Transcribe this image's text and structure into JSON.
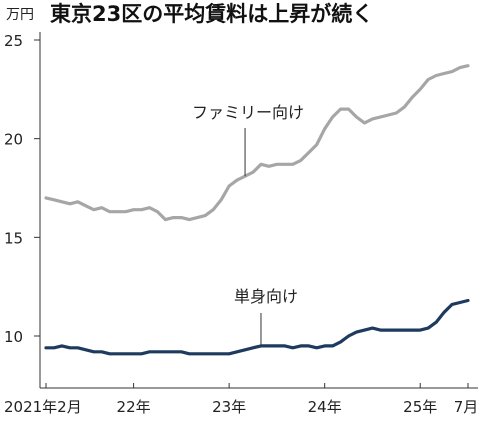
{
  "chart_data": {
    "type": "line",
    "title": "東京23区の平均賃料は上昇が続く",
    "unit": "万円",
    "xlabel": "",
    "ylabel": "",
    "x_start": "2021-02",
    "x_end": "2025-07",
    "ylim": [
      8.0,
      25.0
    ],
    "yticks": [
      "25",
      "20",
      "15",
      "10"
    ],
    "ytick_values": [
      25,
      20,
      15,
      10
    ],
    "xticks": [
      {
        "label": "2021年2月",
        "x": "2021-02"
      },
      {
        "label": "22年",
        "x": "2022-01"
      },
      {
        "label": "23年",
        "x": "2023-01"
      },
      {
        "label": "24年",
        "x": "2024-01"
      },
      {
        "label": "25年",
        "x": "2025-01"
      },
      {
        "label": "7月",
        "x": "2025-07"
      }
    ],
    "grid": false,
    "series": [
      {
        "name": "ファミリー向け",
        "color": "#a6a6a6",
        "x": [
          "2021-02",
          "2021-03",
          "2021-04",
          "2021-05",
          "2021-06",
          "2021-07",
          "2021-08",
          "2021-09",
          "2021-10",
          "2021-11",
          "2021-12",
          "2022-01",
          "2022-02",
          "2022-03",
          "2022-04",
          "2022-05",
          "2022-06",
          "2022-07",
          "2022-08",
          "2022-09",
          "2022-10",
          "2022-11",
          "2022-12",
          "2023-01",
          "2023-02",
          "2023-03",
          "2023-04",
          "2023-05",
          "2023-06",
          "2023-07",
          "2023-08",
          "2023-09",
          "2023-10",
          "2023-11",
          "2023-12",
          "2024-01",
          "2024-02",
          "2024-03",
          "2024-04",
          "2024-05",
          "2024-06",
          "2024-07",
          "2024-08",
          "2024-09",
          "2024-10",
          "2024-11",
          "2024-12",
          "2025-01",
          "2025-02",
          "2025-03",
          "2025-04",
          "2025-05",
          "2025-06",
          "2025-07"
        ],
        "values": [
          17.0,
          16.9,
          16.8,
          16.7,
          16.8,
          16.6,
          16.4,
          16.5,
          16.3,
          16.3,
          16.3,
          16.4,
          16.4,
          16.5,
          16.3,
          15.9,
          16.0,
          16.0,
          15.9,
          16.0,
          16.1,
          16.4,
          16.9,
          17.6,
          17.9,
          18.1,
          18.3,
          18.7,
          18.6,
          18.7,
          18.7,
          18.7,
          18.9,
          19.3,
          19.7,
          20.5,
          21.1,
          21.5,
          21.5,
          21.1,
          20.8,
          21.0,
          21.1,
          21.2,
          21.3,
          21.6,
          22.1,
          22.5,
          23.0,
          23.2,
          23.3,
          23.4,
          23.6,
          23.7
        ]
      },
      {
        "name": "単身向け",
        "color": "#1e3a5f",
        "x": [
          "2021-02",
          "2021-03",
          "2021-04",
          "2021-05",
          "2021-06",
          "2021-07",
          "2021-08",
          "2021-09",
          "2021-10",
          "2021-11",
          "2021-12",
          "2022-01",
          "2022-02",
          "2022-03",
          "2022-04",
          "2022-05",
          "2022-06",
          "2022-07",
          "2022-08",
          "2022-09",
          "2022-10",
          "2022-11",
          "2022-12",
          "2023-01",
          "2023-02",
          "2023-03",
          "2023-04",
          "2023-05",
          "2023-06",
          "2023-07",
          "2023-08",
          "2023-09",
          "2023-10",
          "2023-11",
          "2023-12",
          "2024-01",
          "2024-02",
          "2024-03",
          "2024-04",
          "2024-05",
          "2024-06",
          "2024-07",
          "2024-08",
          "2024-09",
          "2024-10",
          "2024-11",
          "2024-12",
          "2025-01",
          "2025-02",
          "2025-03",
          "2025-04",
          "2025-05",
          "2025-06",
          "2025-07"
        ],
        "values": [
          9.4,
          9.4,
          9.5,
          9.4,
          9.4,
          9.3,
          9.2,
          9.2,
          9.1,
          9.1,
          9.1,
          9.1,
          9.1,
          9.2,
          9.2,
          9.2,
          9.2,
          9.2,
          9.1,
          9.1,
          9.1,
          9.1,
          9.1,
          9.1,
          9.2,
          9.3,
          9.4,
          9.5,
          9.5,
          9.5,
          9.5,
          9.4,
          9.5,
          9.5,
          9.4,
          9.5,
          9.5,
          9.7,
          10.0,
          10.2,
          10.3,
          10.4,
          10.3,
          10.3,
          10.3,
          10.3,
          10.3,
          10.3,
          10.4,
          10.7,
          11.2,
          11.6,
          11.7,
          11.8
        ]
      }
    ],
    "annotations": [
      {
        "text": "ファミリー向け",
        "series": "ファミリー向け",
        "x": "2023-03",
        "y": 18.1
      },
      {
        "text": "単身向け",
        "series": "単身向け",
        "x": "2023-05",
        "y": 9.5
      }
    ]
  }
}
